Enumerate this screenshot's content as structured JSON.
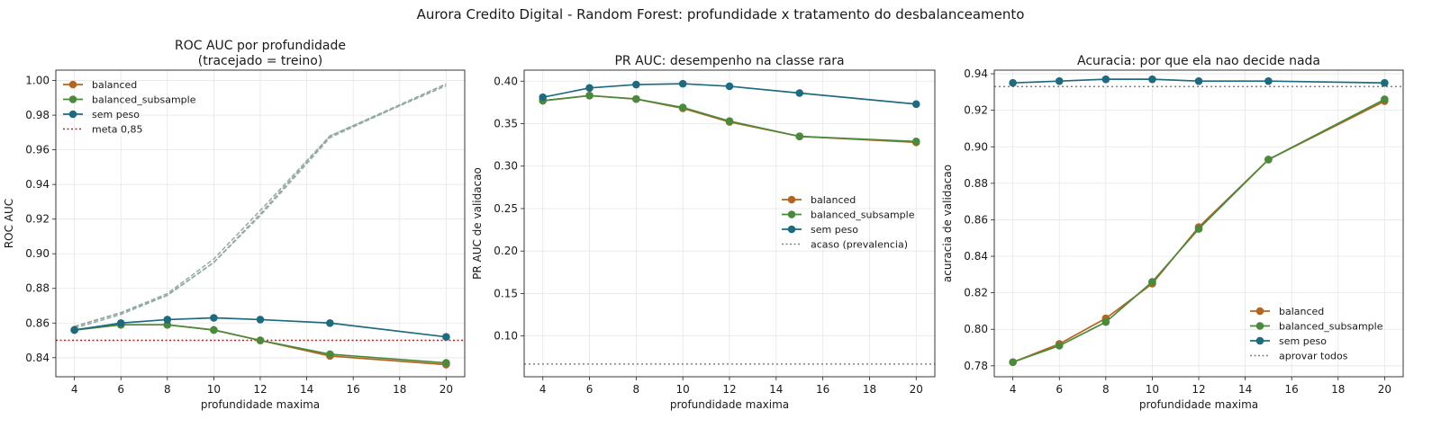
{
  "figure_title": "Aurora Credito Digital - Random Forest: profundidade x tratamento do desbalanceamento",
  "colors": {
    "balanced": "#b5651d",
    "balanced_subsample": "#4a8a3c",
    "sem_peso": "#1e6b80",
    "meta": "#b22222",
    "baseline": "#808080",
    "train_dash": "#8fa6a0"
  },
  "chart_data": [
    {
      "type": "line",
      "title": "ROC AUC por profundidade\n(tracejado = treino)",
      "xlabel": "profundidade maxima",
      "ylabel": "ROC AUC",
      "xlim": [
        3.2,
        20.8
      ],
      "ylim": [
        0.829,
        1.006
      ],
      "xticks": [
        4,
        6,
        8,
        10,
        12,
        14,
        16,
        18,
        20
      ],
      "yticks": [
        0.84,
        0.86,
        0.88,
        0.9,
        0.92,
        0.94,
        0.96,
        0.98,
        1.0
      ],
      "ytick_format": 2,
      "x": [
        4,
        6,
        8,
        10,
        12,
        15,
        20
      ],
      "series": [
        {
          "name": "balanced",
          "color_key": "balanced",
          "values": [
            0.856,
            0.859,
            0.859,
            0.856,
            0.85,
            0.841,
            0.836
          ]
        },
        {
          "name": "balanced_subsample",
          "color_key": "balanced_subsample",
          "values": [
            0.856,
            0.859,
            0.859,
            0.856,
            0.85,
            0.842,
            0.837
          ]
        },
        {
          "name": "sem peso",
          "color_key": "sem_peso",
          "values": [
            0.856,
            0.86,
            0.862,
            0.863,
            0.862,
            0.86,
            0.852
          ]
        }
      ],
      "train_series": [
        {
          "values": [
            0.858,
            0.866,
            0.877,
            0.897,
            0.925,
            0.968,
            0.998
          ]
        },
        {
          "values": [
            0.858,
            0.866,
            0.876,
            0.895,
            0.922,
            0.967,
            0.998
          ]
        },
        {
          "values": [
            0.857,
            0.865,
            0.876,
            0.895,
            0.923,
            0.968,
            0.997
          ]
        }
      ],
      "hlines": [
        {
          "name": "meta 0,85",
          "y": 0.85,
          "color_key": "meta",
          "in_legend": true
        }
      ],
      "legend": "top-left",
      "grid": true
    },
    {
      "type": "line",
      "title": "PR AUC: desempenho na classe rara",
      "xlabel": "profundidade maxima",
      "ylabel": "PR AUC de validacao",
      "xlim": [
        3.2,
        20.8
      ],
      "ylim": [
        0.052,
        0.413
      ],
      "xticks": [
        4,
        6,
        8,
        10,
        12,
        14,
        16,
        18,
        20
      ],
      "yticks": [
        0.1,
        0.15,
        0.2,
        0.25,
        0.3,
        0.35,
        0.4
      ],
      "ytick_format": 2,
      "x": [
        4,
        6,
        8,
        10,
        12,
        15,
        20
      ],
      "series": [
        {
          "name": "balanced",
          "color_key": "balanced",
          "values": [
            0.377,
            0.383,
            0.379,
            0.368,
            0.352,
            0.335,
            0.328
          ]
        },
        {
          "name": "balanced_subsample",
          "color_key": "balanced_subsample",
          "values": [
            0.377,
            0.383,
            0.379,
            0.369,
            0.353,
            0.335,
            0.329
          ]
        },
        {
          "name": "sem peso",
          "color_key": "sem_peso",
          "values": [
            0.381,
            0.392,
            0.396,
            0.397,
            0.394,
            0.386,
            0.373
          ]
        }
      ],
      "train_series": [],
      "hlines": [
        {
          "name": "acaso (prevalencia)",
          "y": 0.067,
          "color_key": "baseline",
          "in_legend": true
        }
      ],
      "legend": "center-right",
      "grid": true
    },
    {
      "type": "line",
      "title": "Acuracia: por que ela nao decide nada",
      "xlabel": "profundidade maxima",
      "ylabel": "acuracia de validacao",
      "xlim": [
        3.2,
        20.8
      ],
      "ylim": [
        0.774,
        0.942
      ],
      "xticks": [
        4,
        6,
        8,
        10,
        12,
        14,
        16,
        18,
        20
      ],
      "yticks": [
        0.78,
        0.8,
        0.82,
        0.84,
        0.86,
        0.88,
        0.9,
        0.92,
        0.94
      ],
      "ytick_format": 2,
      "x": [
        4,
        6,
        8,
        10,
        12,
        15,
        20
      ],
      "series": [
        {
          "name": "balanced",
          "color_key": "balanced",
          "values": [
            0.782,
            0.792,
            0.806,
            0.825,
            0.856,
            0.893,
            0.925
          ]
        },
        {
          "name": "balanced_subsample",
          "color_key": "balanced_subsample",
          "values": [
            0.782,
            0.791,
            0.804,
            0.826,
            0.855,
            0.893,
            0.926
          ]
        },
        {
          "name": "sem peso",
          "color_key": "sem_peso",
          "values": [
            0.935,
            0.936,
            0.937,
            0.937,
            0.936,
            0.936,
            0.935
          ]
        }
      ],
      "train_series": [],
      "hlines": [
        {
          "name": "aprovar todos",
          "y": 0.933,
          "color_key": "baseline",
          "in_legend": true
        }
      ],
      "legend": "bottom-right",
      "grid": true
    }
  ]
}
